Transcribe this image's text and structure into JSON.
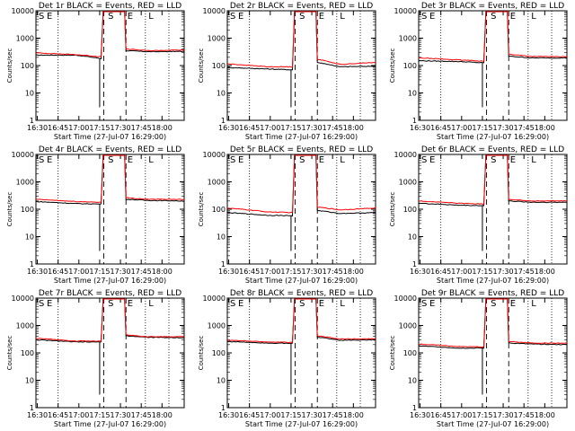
{
  "shared": {
    "xlabel": "Start Time (27-Jul-07 16:29:00)",
    "ylabel": "Counts/sec",
    "x_ticks": [
      "16:30",
      "16:45",
      "17:00",
      "17:15",
      "17:30",
      "17:45",
      "18:00"
    ],
    "y_ticks": [
      "1",
      "10",
      "100",
      "1000",
      "10000"
    ],
    "y_scale": "log",
    "ylim": [
      1,
      10000
    ],
    "xlim": [
      "16:29",
      "18:16"
    ],
    "dotted_markers": [
      "16:45",
      "17:48",
      "18:05"
    ],
    "dashed_markers": [
      "17:18",
      "17:34"
    ],
    "markers": {
      "S": "17:23",
      "E": "17:37",
      "L": "17:52"
    },
    "colors": {
      "events": "#000000",
      "lld": "#ff0000",
      "frame": "#000000"
    }
  },
  "chart_data": [
    {
      "type": "line",
      "title": "Det 1r BLACK = Events, RED = LLD",
      "series": [
        {
          "name": "Events",
          "color": "#000000",
          "pre": [
            240,
            240,
            180
          ],
          "post": [
            350,
            320,
            330
          ]
        },
        {
          "name": "LLD",
          "color": "#ff0000",
          "pre": [
            290,
            250,
            210
          ],
          "post": [
            400,
            350,
            370
          ]
        }
      ],
      "corner_labels": [
        "S",
        "E"
      ]
    },
    {
      "type": "line",
      "title": "Det 2r BLACK = Events, RED = LLD",
      "series": [
        {
          "name": "Events",
          "color": "#000000",
          "pre": [
            85,
            75,
            70
          ],
          "post": [
            130,
            90,
            95
          ]
        },
        {
          "name": "LLD",
          "color": "#ff0000",
          "pre": [
            115,
            90,
            90
          ],
          "post": [
            170,
            110,
            130
          ]
        }
      ],
      "corner_labels": [
        "S",
        "E"
      ]
    },
    {
      "type": "line",
      "title": "Det 3r BLACK = Events, RED = LLD",
      "series": [
        {
          "name": "Events",
          "color": "#000000",
          "pre": [
            150,
            140,
            125
          ],
          "post": [
            220,
            190,
            190
          ]
        },
        {
          "name": "LLD",
          "color": "#ff0000",
          "pre": [
            190,
            160,
            145
          ],
          "post": [
            260,
            215,
            210
          ]
        }
      ],
      "corner_labels": [
        "S",
        "E"
      ]
    },
    {
      "type": "line",
      "title": "Det 4r BLACK = Events, RED = LLD",
      "series": [
        {
          "name": "Events",
          "color": "#000000",
          "pre": [
            190,
            160,
            155
          ],
          "post": [
            230,
            210,
            200
          ]
        },
        {
          "name": "LLD",
          "color": "#ff0000",
          "pre": [
            230,
            190,
            180
          ],
          "post": [
            260,
            230,
            230
          ]
        }
      ],
      "corner_labels": [
        "S",
        "E"
      ]
    },
    {
      "type": "line",
      "title": "Det 5r BLACK = Events, RED = LLD",
      "series": [
        {
          "name": "Events",
          "color": "#000000",
          "pre": [
            75,
            60,
            58
          ],
          "post": [
            90,
            70,
            75
          ]
        },
        {
          "name": "LLD",
          "color": "#ff0000",
          "pre": [
            110,
            80,
            75
          ],
          "post": [
            120,
            95,
            110
          ]
        }
      ],
      "corner_labels": [
        "S",
        "E"
      ]
    },
    {
      "type": "line",
      "title": "Det 6r BLACK = Events, RED = LLD",
      "series": [
        {
          "name": "Events",
          "color": "#000000",
          "pre": [
            165,
            140,
            135
          ],
          "post": [
            200,
            180,
            180
          ]
        },
        {
          "name": "LLD",
          "color": "#ff0000",
          "pre": [
            200,
            165,
            155
          ],
          "post": [
            230,
            200,
            200
          ]
        }
      ],
      "corner_labels": [
        "S",
        "E"
      ]
    },
    {
      "type": "line",
      "title": "Det 7r BLACK = Events, RED = LLD",
      "series": [
        {
          "name": "Events",
          "color": "#000000",
          "pre": [
            300,
            250,
            250
          ],
          "post": [
            420,
            370,
            360
          ]
        },
        {
          "name": "LLD",
          "color": "#ff0000",
          "pre": [
            340,
            270,
            270
          ],
          "post": [
            450,
            390,
            390
          ]
        }
      ],
      "corner_labels": [
        "S",
        "E"
      ]
    },
    {
      "type": "line",
      "title": "Det 8r BLACK = Events, RED = LLD",
      "series": [
        {
          "name": "Events",
          "color": "#000000",
          "pre": [
            260,
            230,
            220
          ],
          "post": [
            380,
            290,
            300
          ]
        },
        {
          "name": "LLD",
          "color": "#ff0000",
          "pre": [
            290,
            250,
            240
          ],
          "post": [
            420,
            320,
            330
          ]
        }
      ],
      "corner_labels": [
        "S",
        "E"
      ]
    },
    {
      "type": "line",
      "title": "Det 9r BLACK = Events, RED = LLD",
      "series": [
        {
          "name": "Events",
          "color": "#000000",
          "pre": [
            180,
            150,
            150
          ],
          "post": [
            230,
            210,
            200
          ]
        },
        {
          "name": "LLD",
          "color": "#ff0000",
          "pre": [
            210,
            170,
            165
          ],
          "post": [
            260,
            230,
            225
          ]
        }
      ],
      "corner_labels": [
        "S",
        "E"
      ]
    }
  ]
}
